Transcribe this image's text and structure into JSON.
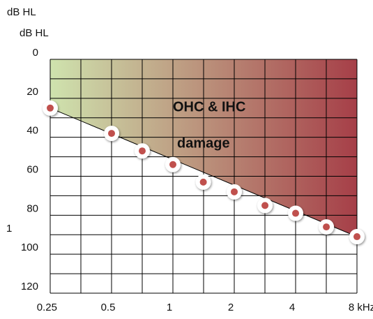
{
  "chart_data": {
    "type": "scatter",
    "y_label_top": "dB HL",
    "y_label": "dB HL",
    "annotation_1": "OHC & IHC",
    "annotation_2": "damage",
    "stray_mark": "1",
    "x_log": true,
    "y_inverted": true,
    "grid": true,
    "xlim": [
      0.25,
      8
    ],
    "xticks": [
      0.25,
      0.5,
      1,
      2,
      4,
      {
        "value": 8,
        "label": "8 kHz"
      }
    ],
    "ylim": [
      0,
      120
    ],
    "yticks": [
      0,
      20,
      40,
      60,
      80,
      100,
      120
    ],
    "gradient_colors": [
      "#cfe3ae",
      "#a63f48"
    ],
    "series": [
      {
        "color": "#c0504d",
        "x": [
          0.25,
          0.5,
          0.707,
          1,
          1.41,
          2,
          2.83,
          4,
          5.66,
          8
        ],
        "values": [
          25,
          38,
          47,
          54,
          63,
          68,
          75,
          79,
          86,
          91
        ]
      }
    ]
  }
}
